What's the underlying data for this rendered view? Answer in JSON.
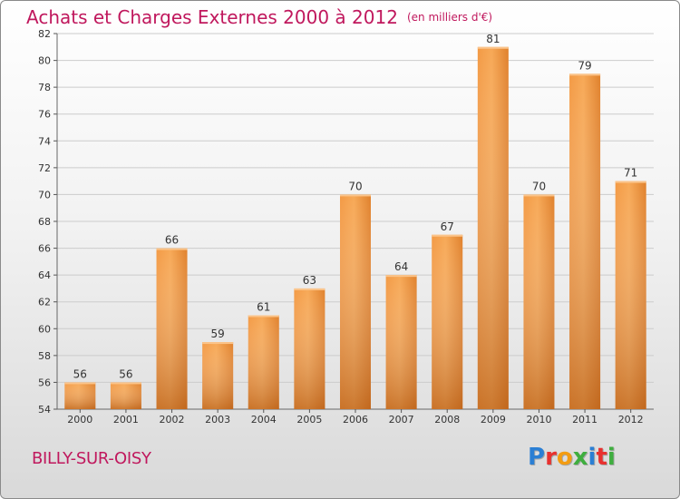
{
  "header": {
    "title": "Achats et Charges Externes 2000 à 2012",
    "unit": "(en milliers d'€)"
  },
  "footer": {
    "commune": "BILLY-SUR-OISY",
    "logo_text": "Proxiti",
    "logo_colors": [
      "#2b7fd4",
      "#e8312f",
      "#f39c12",
      "#3fae3f",
      "#2b7fd4",
      "#e8312f",
      "#3fae3f"
    ]
  },
  "colors": {
    "accent": "#c0185d",
    "bar_light": "#f6a24e",
    "bar_dark": "#c8691b",
    "grid": "#cccccc",
    "axis_text": "#333333"
  },
  "chart_data": {
    "type": "bar",
    "title": "Achats et Charges Externes 2000 à 2012",
    "subtitle": "(en milliers d'€)",
    "xlabel": "",
    "ylabel": "",
    "categories": [
      "2000",
      "2001",
      "2002",
      "2003",
      "2004",
      "2005",
      "2006",
      "2007",
      "2008",
      "2009",
      "2010",
      "2011",
      "2012"
    ],
    "values": [
      56,
      56,
      66,
      59,
      61,
      63,
      70,
      64,
      67,
      81,
      70,
      79,
      71
    ],
    "ylim": [
      54,
      82
    ],
    "yticks": [
      54,
      56,
      58,
      60,
      62,
      64,
      66,
      68,
      70,
      72,
      74,
      76,
      78,
      80,
      82
    ],
    "grid": "horizontal",
    "legend": "none"
  }
}
